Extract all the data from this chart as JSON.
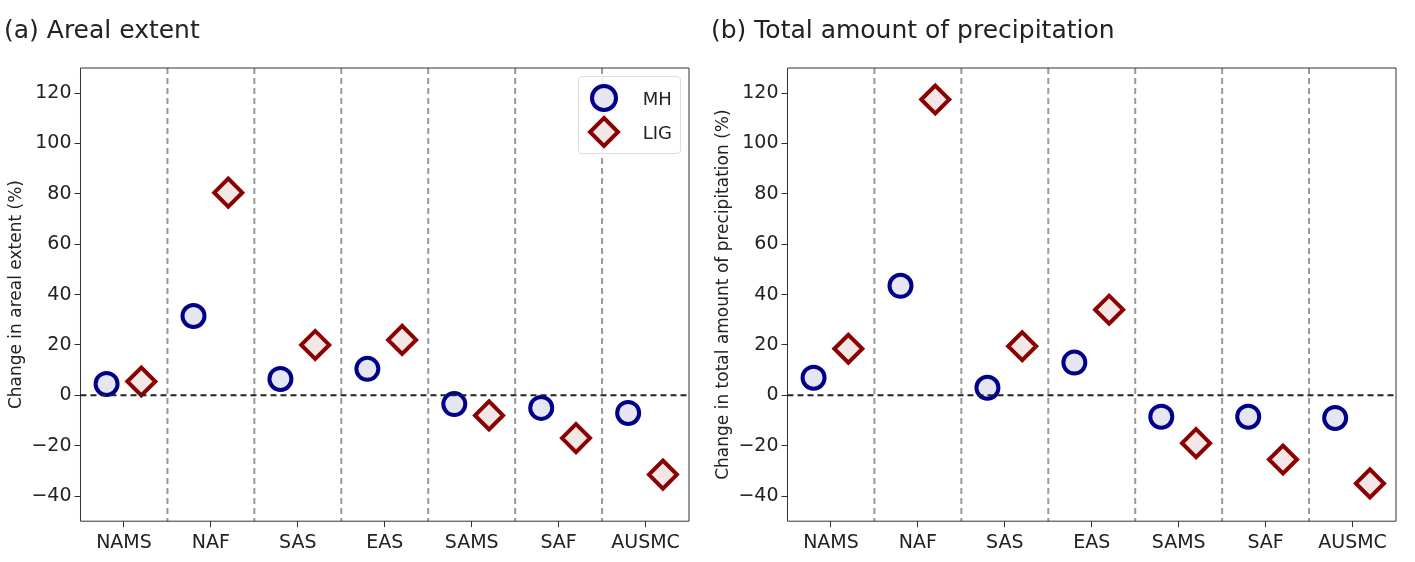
{
  "chart_data": [
    {
      "type": "scatter",
      "title": "(a) Areal extent",
      "ylabel": "Change in areal extent (%)",
      "categories": [
        "NAMS",
        "NAF",
        "SAS",
        "EAS",
        "SAMS",
        "SAF",
        "AUSMC"
      ],
      "series": [
        {
          "name": "MH",
          "color": "#00008b",
          "marker": "circle",
          "values": [
            4.5,
            31.5,
            6.5,
            10.5,
            -3.5,
            -5,
            -7
          ]
        },
        {
          "name": "LIG",
          "color": "#8b0000",
          "marker": "diamond",
          "values": [
            5.5,
            80.5,
            20,
            22,
            -8,
            -17,
            -31.5
          ]
        }
      ],
      "ylim": [
        -50,
        130
      ],
      "yticks": [
        -40,
        -20,
        0,
        20,
        40,
        60,
        80,
        100,
        120
      ],
      "grid": "x",
      "legend": "top right",
      "ref_lines": [
        {
          "axis": "y",
          "value": 0,
          "color": "#222222",
          "line_style": "dashed"
        }
      ]
    },
    {
      "type": "scatter",
      "title": "(b) Total amount of precipitation",
      "ylabel": "Change in total amount of precipitation (%)",
      "categories": [
        "NAMS",
        "NAF",
        "SAS",
        "EAS",
        "SAMS",
        "SAF",
        "AUSMC"
      ],
      "series": [
        {
          "color": "#00008b",
          "marker": "circle",
          "values": [
            7,
            43.5,
            3,
            13,
            -8.5,
            -8.5,
            -9
          ]
        },
        {
          "color": "#8b0000",
          "marker": "diamond",
          "values": [
            18.5,
            117.5,
            19.5,
            34,
            -19,
            -25.5,
            -35
          ]
        }
      ],
      "ylim": [
        -50,
        130
      ],
      "yticks": [
        -40,
        -20,
        0,
        20,
        40,
        60,
        80,
        100,
        120
      ],
      "grid": "x",
      "legend": false,
      "ref_lines": [
        {
          "axis": "y",
          "value": 0,
          "color": "#222222",
          "line_style": "dashed"
        }
      ]
    }
  ]
}
